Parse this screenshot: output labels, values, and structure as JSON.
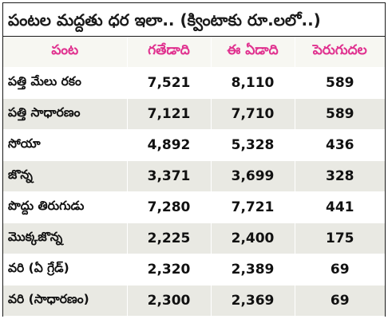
{
  "title": "పంటల మద్దతు ధర ఇలా.. (క్వింటాకు రూ.లలో..)",
  "columns": [
    "పంట",
    "గతేడాది",
    "ఈ ఏడాది",
    "పెరుగుదల"
  ],
  "rows": [
    {
      "crop": "పత్తి మేలు రకం",
      "last_year": "7,521",
      "this_year": "8,110",
      "increase": "589"
    },
    {
      "crop": "పత్తి సాధారణం",
      "last_year": "7,121",
      "this_year": "7,710",
      "increase": "589"
    },
    {
      "crop": "సోయా",
      "last_year": "4,892",
      "this_year": "5,328",
      "increase": "436"
    },
    {
      "crop": "జొన్న",
      "last_year": "3,371",
      "this_year": "3,699",
      "increase": "328"
    },
    {
      "crop": "పొద్దు తిరుగుడు",
      "last_year": "7,280",
      "this_year": "7,721",
      "increase": "441"
    },
    {
      "crop": "మొక్కజొన్న",
      "last_year": "2,225",
      "this_year": "2,400",
      "increase": "175"
    },
    {
      "crop": "వరి (ఏ గ్రేడ్)",
      "last_year": "2,320",
      "this_year": "2,389",
      "increase": "69"
    },
    {
      "crop": "వరి (సాధారణం)",
      "last_year": "2,300",
      "this_year": "2,369",
      "increase": "69"
    }
  ],
  "colors": {
    "header_text": "#e0318f",
    "header_bg": "#f7f7f2",
    "stripe_bg": "#e9e9e3",
    "border": "#1a1a1a"
  }
}
